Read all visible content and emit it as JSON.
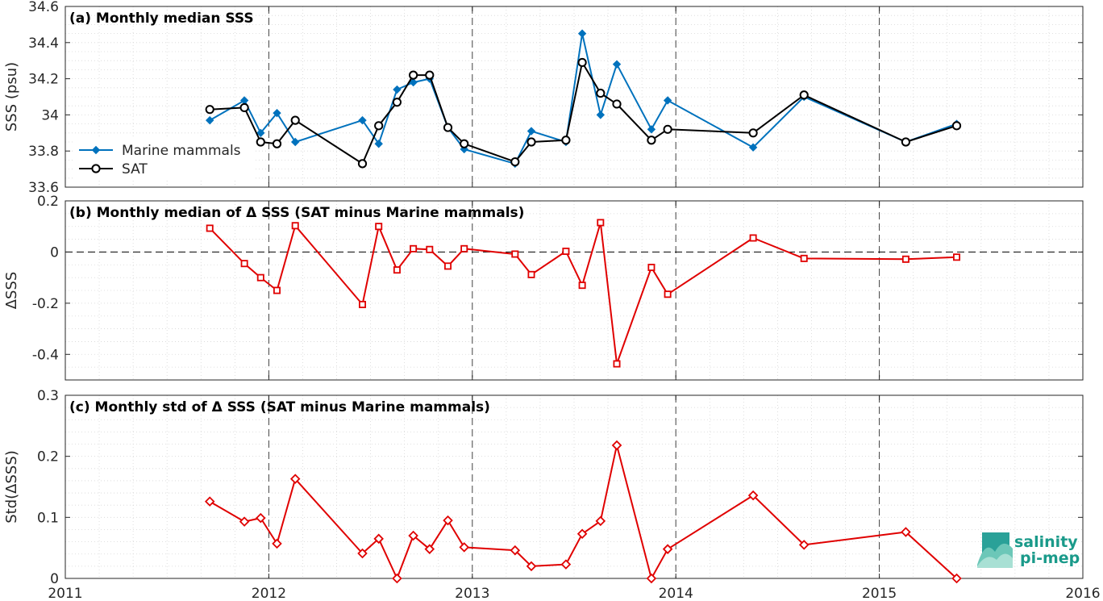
{
  "colors": {
    "mammals": "#0072BD",
    "sat": "#000000",
    "delta": "#E00000",
    "logo": "#1a9a8a"
  },
  "logo": {
    "line1": "salinity",
    "line2": "pi-mep"
  },
  "x_ticks": [
    "2011",
    "2012",
    "2013",
    "2014",
    "2015",
    "2016"
  ],
  "chart_data": [
    {
      "type": "line",
      "title": "(a) Monthly median SSS",
      "ylabel": "SSS (psu)",
      "xlim": [
        2011,
        2016
      ],
      "ylim": [
        33.6,
        34.6
      ],
      "y_ticks": [
        "33.6",
        "33.8",
        "34",
        "34.2",
        "34.4",
        "34.6"
      ],
      "x": [
        2011.71,
        2011.88,
        2011.96,
        2012.04,
        2012.13,
        2012.46,
        2012.54,
        2012.63,
        2012.71,
        2012.79,
        2012.88,
        2012.96,
        2013.21,
        2013.29,
        2013.46,
        2013.54,
        2013.63,
        2013.71,
        2013.88,
        2013.96,
        2014.38,
        2014.63,
        2015.13,
        2015.38
      ],
      "series": [
        {
          "name": "Marine mammals",
          "marker": "diamond",
          "values": [
            33.97,
            34.08,
            33.9,
            34.01,
            33.85,
            33.97,
            33.84,
            34.14,
            34.18,
            34.2,
            33.93,
            33.81,
            33.73,
            33.91,
            33.85,
            34.45,
            34.0,
            34.28,
            33.92,
            34.08,
            33.82,
            34.1,
            33.85,
            33.95
          ]
        },
        {
          "name": "SAT",
          "marker": "circle",
          "values": [
            34.03,
            34.04,
            33.85,
            33.84,
            33.97,
            33.73,
            33.94,
            34.07,
            34.22,
            34.22,
            33.93,
            33.84,
            33.74,
            33.85,
            33.86,
            34.29,
            34.12,
            34.06,
            33.86,
            33.92,
            33.9,
            34.11,
            33.85,
            33.94
          ]
        }
      ],
      "legend": "left"
    },
    {
      "type": "line",
      "title": "(b) Monthly median of Δ SSS (SAT minus Marine mammals)",
      "ylabel": "ΔSSS",
      "xlim": [
        2011,
        2016
      ],
      "ylim": [
        -0.5,
        0.2
      ],
      "y_ticks": [
        "-0.4",
        "-0.2",
        "0",
        "0.2"
      ],
      "reference_line": 0,
      "x": [
        2011.71,
        2011.88,
        2011.96,
        2012.04,
        2012.13,
        2012.46,
        2012.54,
        2012.63,
        2012.71,
        2012.79,
        2012.88,
        2012.96,
        2013.21,
        2013.29,
        2013.46,
        2013.54,
        2013.63,
        2013.71,
        2013.88,
        2013.96,
        2014.38,
        2014.63,
        2015.13,
        2015.38
      ],
      "series": [
        {
          "marker": "square",
          "values": [
            0.093,
            -0.045,
            -0.1,
            -0.15,
            0.103,
            -0.205,
            0.1,
            -0.07,
            0.013,
            0.01,
            -0.055,
            0.013,
            -0.008,
            -0.088,
            0.003,
            -0.13,
            0.115,
            -0.437,
            -0.06,
            -0.165,
            0.055,
            -0.025,
            -0.028,
            -0.02
          ]
        }
      ]
    },
    {
      "type": "line",
      "title": "(c) Monthly std of Δ SSS (SAT minus Marine mammals)",
      "ylabel": "Std(ΔSSS)",
      "xlim": [
        2011,
        2016
      ],
      "ylim": [
        0,
        0.3
      ],
      "y_ticks": [
        "0",
        "0.1",
        "0.2",
        "0.3"
      ],
      "x": [
        2011.71,
        2011.88,
        2011.96,
        2012.04,
        2012.13,
        2012.46,
        2012.54,
        2012.63,
        2012.71,
        2012.79,
        2012.88,
        2012.96,
        2013.21,
        2013.29,
        2013.46,
        2013.54,
        2013.63,
        2013.71,
        2013.88,
        2013.96,
        2014.38,
        2014.63,
        2015.13,
        2015.38
      ],
      "series": [
        {
          "marker": "diamond",
          "values": [
            0.126,
            0.093,
            0.099,
            0.057,
            0.163,
            0.041,
            0.065,
            0.0,
            0.07,
            0.048,
            0.095,
            0.051,
            0.046,
            0.02,
            0.023,
            0.073,
            0.094,
            0.218,
            0.0,
            0.048,
            0.136,
            0.055,
            0.076,
            0.0
          ]
        }
      ]
    }
  ]
}
